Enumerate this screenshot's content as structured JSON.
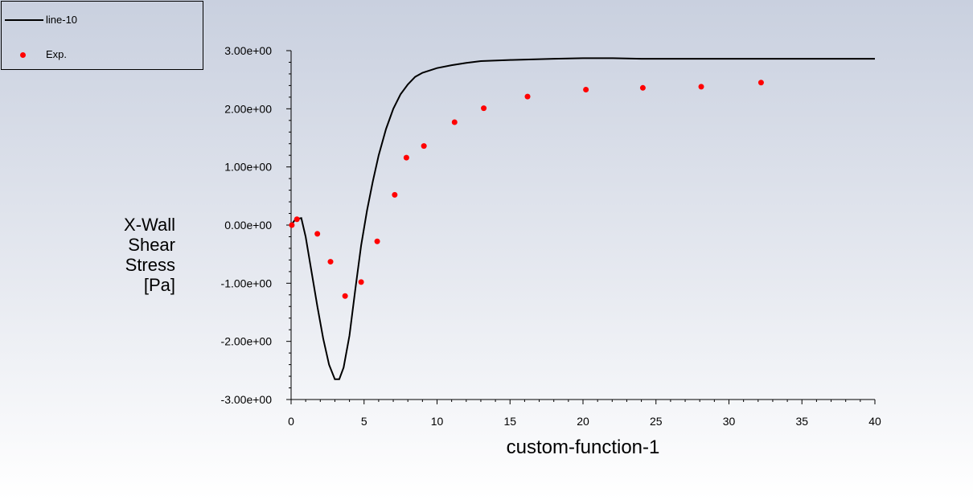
{
  "legend": {
    "items": [
      {
        "label": "line-10",
        "kind": "line",
        "color": "#000000"
      },
      {
        "label": "Exp.",
        "kind": "marker",
        "color": "#ff0000"
      }
    ]
  },
  "chart_data": {
    "type": "line",
    "xlabel": "custom-function-1",
    "ylabel_lines": [
      "X-Wall",
      "Shear",
      "Stress",
      "[Pa]"
    ],
    "xlim": [
      0,
      40
    ],
    "ylim": [
      -3,
      3
    ],
    "x_ticks": [
      "0",
      "5",
      "10",
      "15",
      "20",
      "25",
      "30",
      "35",
      "40"
    ],
    "y_ticks": [
      "3.00e+00",
      "2.00e+00",
      "1.00e+00",
      "0.00e+00",
      "-1.00e+00",
      "-2.00e+00",
      "-3.00e+00"
    ],
    "grid": false,
    "legend_position": "top-left",
    "series": [
      {
        "name": "line-10",
        "style": "line",
        "color": "#000000",
        "points": [
          [
            0,
            0.0
          ],
          [
            0.3,
            0.1
          ],
          [
            0.7,
            0.12
          ],
          [
            1.0,
            -0.2
          ],
          [
            1.4,
            -0.8
          ],
          [
            1.8,
            -1.4
          ],
          [
            2.2,
            -1.95
          ],
          [
            2.6,
            -2.4
          ],
          [
            3.0,
            -2.65
          ],
          [
            3.3,
            -2.65
          ],
          [
            3.6,
            -2.45
          ],
          [
            4.0,
            -1.9
          ],
          [
            4.4,
            -1.1
          ],
          [
            4.8,
            -0.35
          ],
          [
            5.2,
            0.25
          ],
          [
            5.6,
            0.75
          ],
          [
            6.0,
            1.2
          ],
          [
            6.5,
            1.65
          ],
          [
            7.0,
            2.0
          ],
          [
            7.5,
            2.25
          ],
          [
            8.0,
            2.42
          ],
          [
            8.5,
            2.55
          ],
          [
            9.0,
            2.62
          ],
          [
            10.0,
            2.7
          ],
          [
            11.0,
            2.75
          ],
          [
            12.0,
            2.79
          ],
          [
            13.0,
            2.82
          ],
          [
            15.0,
            2.84
          ],
          [
            18.0,
            2.86
          ],
          [
            20.0,
            2.87
          ],
          [
            22.0,
            2.87
          ],
          [
            24.0,
            2.86
          ],
          [
            26.0,
            2.86
          ],
          [
            28.0,
            2.86
          ],
          [
            30.0,
            2.86
          ],
          [
            34.0,
            2.86
          ],
          [
            37.0,
            2.86
          ],
          [
            40.0,
            2.86
          ]
        ]
      },
      {
        "name": "Exp.",
        "style": "scatter",
        "color": "#ff0000",
        "points": [
          [
            0.05,
            0.0
          ],
          [
            0.4,
            0.1
          ],
          [
            1.8,
            -0.15
          ],
          [
            2.7,
            -0.63
          ],
          [
            3.7,
            -1.22
          ],
          [
            4.8,
            -0.98
          ],
          [
            5.9,
            -0.28
          ],
          [
            7.1,
            0.52
          ],
          [
            7.9,
            1.16
          ],
          [
            9.1,
            1.36
          ],
          [
            11.2,
            1.77
          ],
          [
            13.2,
            2.01
          ],
          [
            16.2,
            2.21
          ],
          [
            20.2,
            2.33
          ],
          [
            24.1,
            2.36
          ],
          [
            28.1,
            2.38
          ],
          [
            32.2,
            2.45
          ]
        ]
      }
    ]
  }
}
